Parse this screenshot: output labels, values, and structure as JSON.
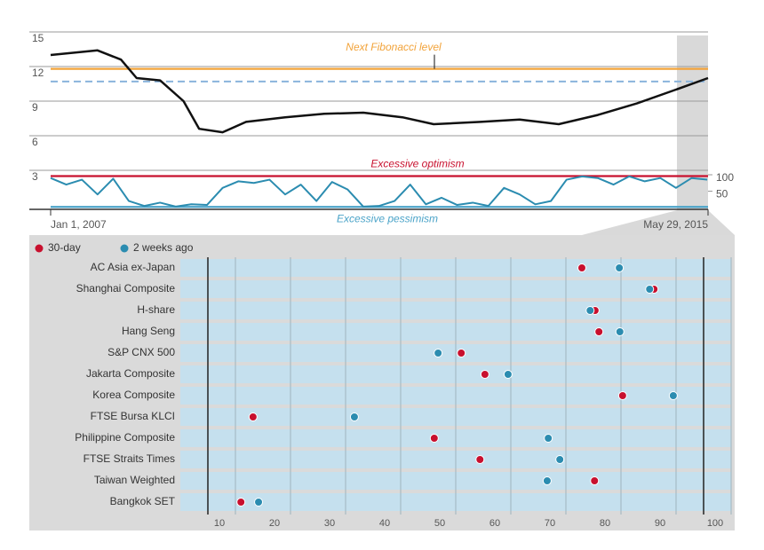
{
  "chart_data": [
    {
      "type": "line",
      "x": [
        2007.0,
        2007.3,
        2007.6,
        2007.9,
        2008.1,
        2008.4,
        2008.7,
        2008.9,
        2009.2,
        2009.5,
        2010.0,
        2010.5,
        2011.0,
        2011.5,
        2011.9,
        2012.5,
        2013.0,
        2013.5,
        2014.0,
        2014.5,
        2015.0,
        2015.41
      ],
      "values": [
        13.0,
        13.2,
        13.4,
        12.6,
        11.0,
        10.8,
        9.0,
        6.6,
        6.3,
        7.2,
        7.6,
        7.9,
        8.0,
        7.6,
        7.0,
        7.2,
        7.4,
        7.0,
        7.8,
        8.8,
        10.0,
        11.0
      ],
      "color": "#111111",
      "xlim": [
        2007,
        2015.41
      ],
      "xticks": [
        {
          "value": 2007,
          "label": "Jan 1, 2007"
        },
        {
          "value": 2015.41,
          "label": "May 29, 2015"
        }
      ],
      "ylim": [
        3,
        15
      ],
      "yticks": [
        3,
        6,
        9,
        12,
        15
      ],
      "grid": true,
      "reference_lines": [
        {
          "label": "Next Fibonacci level",
          "value": 11.8,
          "color": "#f2a33a"
        },
        {
          "value": 10.7,
          "color": "#8ab4dc",
          "dashed": true
        }
      ]
    },
    {
      "type": "line",
      "x": [
        2007.0,
        2007.2,
        2007.4,
        2007.6,
        2007.8,
        2008.0,
        2008.2,
        2008.4,
        2008.6,
        2008.8,
        2009.0,
        2009.2,
        2009.4,
        2009.6,
        2009.8,
        2010.0,
        2010.2,
        2010.4,
        2010.6,
        2010.8,
        2011.0,
        2011.2,
        2011.4,
        2011.6,
        2011.8,
        2012.0,
        2012.2,
        2012.4,
        2012.6,
        2012.8,
        2013.0,
        2013.2,
        2013.4,
        2013.6,
        2013.8,
        2014.0,
        2014.2,
        2014.4,
        2014.6,
        2014.8,
        2015.0,
        2015.2,
        2015.4
      ],
      "values": [
        90,
        70,
        85,
        40,
        88,
        20,
        5,
        15,
        3,
        10,
        8,
        60,
        80,
        75,
        85,
        40,
        70,
        20,
        78,
        55,
        3,
        5,
        20,
        70,
        10,
        30,
        8,
        15,
        5,
        60,
        40,
        10,
        20,
        85,
        95,
        90,
        70,
        95,
        80,
        90,
        60,
        90,
        85
      ],
      "color": "#2b8cb0",
      "xlim": [
        2007,
        2015.41
      ],
      "ylim": [
        0,
        100
      ],
      "y2ticks": [
        50,
        100
      ],
      "reference_lines": [
        {
          "label": "Excessive optimism",
          "value": 96,
          "color": "#c8102e"
        },
        {
          "label": "Excessive pessimism",
          "value": 2,
          "color": "#4aa3c8"
        }
      ]
    },
    {
      "type": "dot",
      "categories": [
        "AC Asia ex-Japan",
        "Shanghai Composite",
        "H-share",
        "Hang Seng",
        "S&P CNX 500",
        "Jakarta Composite",
        "Korea Composite",
        "FTSE Bursa KLCI",
        "Philippine Composite",
        "FTSE Straits Times",
        "Taiwan Weighted",
        "Bangkok SET"
      ],
      "series": [
        {
          "name": "30-day",
          "color": "#c8102e",
          "values": [
            72.9,
            86.0,
            75.3,
            76.0,
            51.0,
            55.3,
            80.3,
            13.2,
            46.1,
            54.4,
            75.2,
            11.0
          ]
        },
        {
          "name": "2 weeks ago",
          "color": "#2b8cb0",
          "values": [
            79.7,
            85.2,
            74.4,
            79.8,
            46.8,
            59.5,
            89.5,
            31.6,
            66.8,
            68.9,
            66.6,
            14.2
          ]
        }
      ],
      "xlim": [
        0,
        100
      ],
      "xticks": [
        10,
        20,
        30,
        40,
        50,
        60,
        70,
        80,
        90,
        100
      ],
      "grid": true,
      "reference_lines": [
        {
          "value": 5,
          "color": "#222222"
        },
        {
          "value": 95,
          "color": "#222222"
        }
      ]
    }
  ]
}
